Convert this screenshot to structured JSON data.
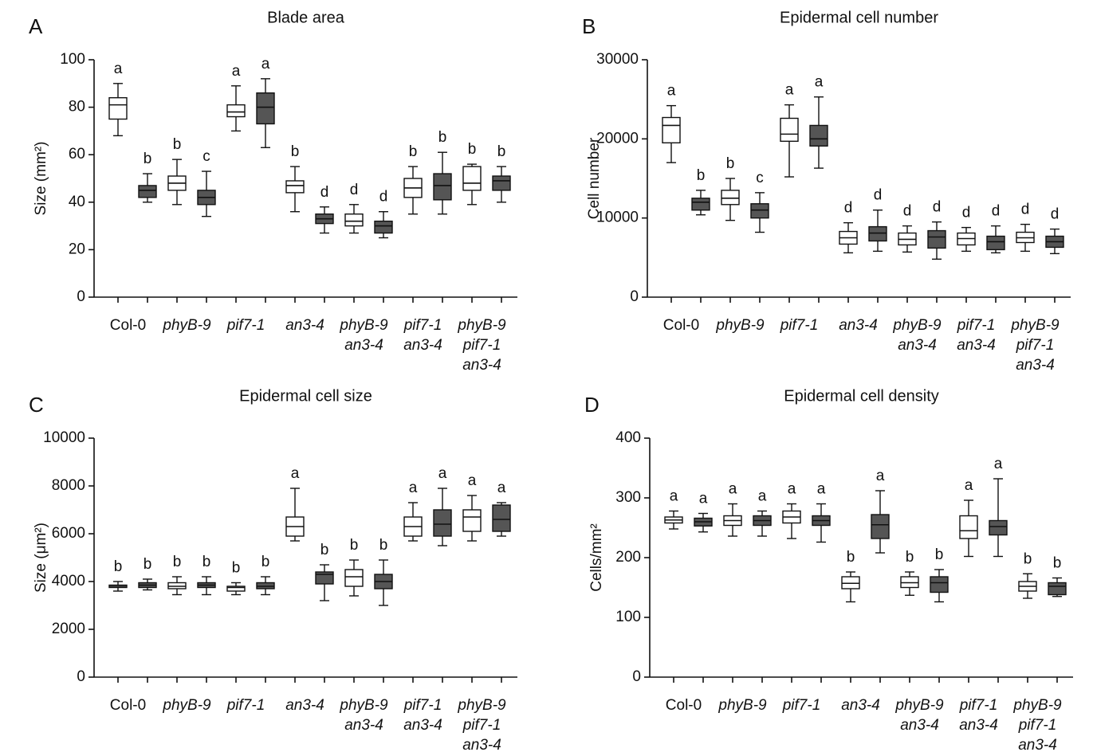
{
  "chart_data": [
    {
      "type": "box",
      "panel": "A",
      "title": "Blade area",
      "ylabel": "Size (mm²)",
      "ylim": [
        0,
        100
      ],
      "yticks": [
        0,
        20,
        40,
        60,
        80,
        100
      ],
      "categories": [
        [
          "Col-0"
        ],
        [
          "phyB-9"
        ],
        [
          "pif7-1"
        ],
        [
          "an3-4"
        ],
        [
          "phyB-9",
          "an3-4"
        ],
        [
          "pif7-1",
          "an3-4"
        ],
        [
          "phyB-9",
          "pif7-1",
          "an3-4"
        ]
      ],
      "series": [
        {
          "color": "#ffffff",
          "boxes": [
            [
              68,
              75,
              81,
              84,
              90
            ],
            [
              39,
              45,
              48,
              51,
              58
            ],
            [
              70,
              76,
              78,
              81,
              89
            ],
            [
              36,
              44,
              47,
              49,
              55
            ],
            [
              27,
              30,
              32,
              35,
              39
            ],
            [
              35,
              42,
              46,
              50,
              55
            ],
            [
              39,
              45,
              48,
              55,
              56
            ]
          ],
          "letters": [
            "a",
            "b",
            "a",
            "b",
            "d",
            "b",
            "b"
          ]
        },
        {
          "color": "#555555",
          "boxes": [
            [
              40,
              42,
              45,
              47,
              52
            ],
            [
              34,
              39,
              42,
              45,
              53
            ],
            [
              63,
              73,
              80,
              86,
              92
            ],
            [
              27,
              31,
              33,
              35,
              38
            ],
            [
              25,
              27,
              30,
              32,
              36
            ],
            [
              35,
              41,
              47,
              52,
              61
            ],
            [
              40,
              45,
              49,
              51,
              55
            ]
          ],
          "letters": [
            "b",
            "c",
            "a",
            "d",
            "d",
            "b",
            "b"
          ]
        }
      ]
    },
    {
      "type": "box",
      "panel": "B",
      "title": "Epidermal cell number",
      "ylabel": "Cell number",
      "ylim": [
        0,
        30000
      ],
      "yticks": [
        0,
        10000,
        20000,
        30000
      ],
      "categories": [
        [
          "Col-0"
        ],
        [
          "phyB-9"
        ],
        [
          "pif7-1"
        ],
        [
          "an3-4"
        ],
        [
          "phyB-9",
          "an3-4"
        ],
        [
          "pif7-1",
          "an3-4"
        ],
        [
          "phyB-9",
          "pif7-1",
          "an3-4"
        ]
      ],
      "series": [
        {
          "color": "#ffffff",
          "boxes": [
            [
              17000,
              19500,
              21700,
              22700,
              24200
            ],
            [
              9700,
              11700,
              12500,
              13500,
              15000
            ],
            [
              15200,
              19700,
              20600,
              22600,
              24300
            ],
            [
              5600,
              6700,
              7500,
              8300,
              9400
            ],
            [
              5700,
              6600,
              7300,
              8100,
              9000
            ],
            [
              5800,
              6600,
              7400,
              8100,
              8800
            ],
            [
              5800,
              6900,
              7500,
              8200,
              9200
            ]
          ],
          "letters": [
            "a",
            "b",
            "a",
            "d",
            "d",
            "d",
            "d"
          ]
        },
        {
          "color": "#555555",
          "boxes": [
            [
              10400,
              11000,
              12000,
              12500,
              13500
            ],
            [
              8200,
              10000,
              11000,
              11800,
              13200
            ],
            [
              16300,
              19100,
              20000,
              21700,
              25300
            ],
            [
              5800,
              7100,
              8100,
              8900,
              11000
            ],
            [
              4800,
              6200,
              7600,
              8400,
              9500
            ],
            [
              5600,
              6000,
              7000,
              7700,
              9000
            ],
            [
              5500,
              6300,
              7000,
              7700,
              8600
            ]
          ],
          "letters": [
            "b",
            "c",
            "a",
            "d",
            "d",
            "d",
            "d"
          ]
        }
      ]
    },
    {
      "type": "box",
      "panel": "C",
      "title": "Epidermal cell size",
      "ylabel": "Size (μm²)",
      "ylim": [
        0,
        10000
      ],
      "yticks": [
        0,
        2000,
        4000,
        6000,
        8000,
        10000
      ],
      "categories": [
        [
          "Col-0"
        ],
        [
          "phyB-9"
        ],
        [
          "pif7-1"
        ],
        [
          "an3-4"
        ],
        [
          "phyB-9",
          "an3-4"
        ],
        [
          "pif7-1",
          "an3-4"
        ],
        [
          "phyB-9",
          "pif7-1",
          "an3-4"
        ]
      ],
      "series": [
        {
          "color": "#ffffff",
          "boxes": [
            [
              3600,
              3750,
              3800,
              3850,
              4000
            ],
            [
              3450,
              3700,
              3800,
              3950,
              4200
            ],
            [
              3450,
              3600,
              3750,
              3800,
              3950
            ],
            [
              5700,
              5900,
              6300,
              6700,
              7900
            ],
            [
              3400,
              3800,
              4200,
              4500,
              4900
            ],
            [
              5700,
              5900,
              6300,
              6700,
              7300
            ],
            [
              5700,
              6100,
              6700,
              7000,
              7600
            ]
          ],
          "letters": [
            "b",
            "b",
            "b",
            "a",
            "b",
            "a",
            "a"
          ]
        },
        {
          "color": "#555555",
          "boxes": [
            [
              3650,
              3750,
              3850,
              3950,
              4100
            ],
            [
              3450,
              3750,
              3850,
              3950,
              4200
            ],
            [
              3450,
              3700,
              3800,
              3950,
              4200
            ],
            [
              3200,
              3900,
              4300,
              4400,
              4700
            ],
            [
              3000,
              3700,
              4000,
              4300,
              4900
            ],
            [
              5500,
              5900,
              6400,
              7000,
              7900
            ],
            [
              5900,
              6100,
              6600,
              7200,
              7300
            ]
          ],
          "letters": [
            "b",
            "b",
            "b",
            "b",
            "b",
            "a",
            "a"
          ]
        }
      ]
    },
    {
      "type": "box",
      "panel": "D",
      "title": "Epidermal cell density",
      "ylabel": "Cells/mm²",
      "ylim": [
        0,
        400
      ],
      "yticks": [
        0,
        100,
        200,
        300,
        400
      ],
      "categories": [
        [
          "Col-0"
        ],
        [
          "phyB-9"
        ],
        [
          "pif7-1"
        ],
        [
          "an3-4"
        ],
        [
          "phyB-9",
          "an3-4"
        ],
        [
          "pif7-1",
          "an3-4"
        ],
        [
          "phyB-9",
          "pif7-1",
          "an3-4"
        ]
      ],
      "series": [
        {
          "color": "#ffffff",
          "boxes": [
            [
              248,
              258,
              263,
              268,
              278
            ],
            [
              236,
              254,
              262,
              270,
              290
            ],
            [
              232,
              258,
              268,
              278,
              290
            ],
            [
              126,
              148,
              157,
              168,
              176
            ],
            [
              137,
              150,
              158,
              168,
              176
            ],
            [
              202,
              232,
              245,
              270,
              296
            ],
            [
              132,
              144,
              152,
              160,
              173
            ]
          ],
          "letters": [
            "a",
            "a",
            "a",
            "b",
            "b",
            "a",
            "b"
          ]
        },
        {
          "color": "#555555",
          "boxes": [
            [
              243,
              253,
              260,
              266,
              274
            ],
            [
              236,
              254,
              262,
              270,
              278
            ],
            [
              226,
              254,
              262,
              270,
              290
            ],
            [
              208,
              232,
              255,
              272,
              312
            ],
            [
              126,
              142,
              158,
              168,
              180
            ],
            [
              202,
              238,
              252,
              262,
              332
            ],
            [
              135,
              138,
              152,
              158,
              166
            ]
          ],
          "letters": [
            "a",
            "a",
            "a",
            "a",
            "b",
            "a",
            "b"
          ]
        }
      ]
    }
  ]
}
